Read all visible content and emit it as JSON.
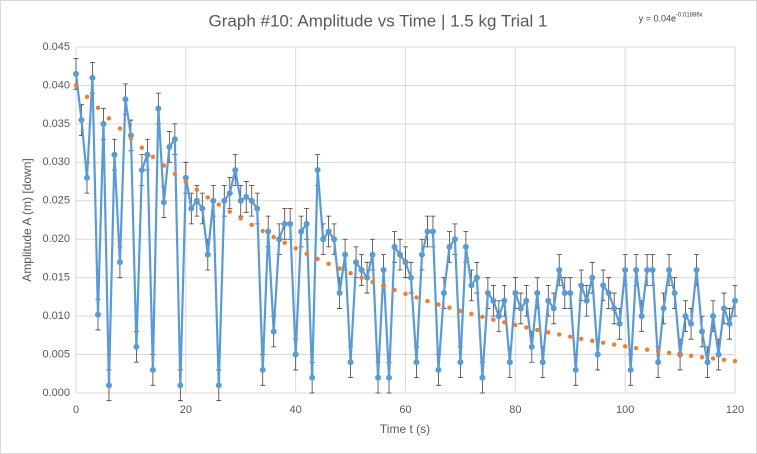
{
  "chart_data": {
    "type": "scatter",
    "title": "Graph #10: Amplitude vs Time | 1.5 kg Trial 1",
    "x_label": "Time t (s)",
    "y_label": "Amplitude A (m)  [down]",
    "equation": {
      "base": "y = 0.04e",
      "exponent": "-0.01886x"
    },
    "grid": true,
    "xlim": [
      0,
      120
    ],
    "xticks": [
      0,
      20,
      40,
      60,
      80,
      100,
      120
    ],
    "ylim": [
      0,
      0.045
    ],
    "yticks": [
      {
        "value": 0,
        "label": "0.000"
      },
      {
        "value": 0.005,
        "label": "0.005"
      },
      {
        "value": 0.01,
        "label": "0.010"
      },
      {
        "value": 0.015,
        "label": "0.015"
      },
      {
        "value": 0.02,
        "label": "0.020"
      },
      {
        "value": 0.025,
        "label": "0.025"
      },
      {
        "value": 0.03,
        "label": "0.030"
      },
      {
        "value": 0.035,
        "label": "0.035"
      },
      {
        "value": 0.04,
        "label": "0.040"
      },
      {
        "value": 0.045,
        "label": "0.045"
      }
    ],
    "x": [
      0,
      1,
      2,
      3,
      4,
      5,
      6,
      7,
      8,
      9,
      10,
      11,
      12,
      13,
      14,
      15,
      16,
      17,
      18,
      19,
      20,
      21,
      22,
      23,
      24,
      25,
      26,
      27,
      28,
      29,
      30,
      31,
      32,
      33,
      34,
      35,
      36,
      37,
      38,
      39,
      40,
      41,
      42,
      43,
      44,
      45,
      46,
      47,
      48,
      49,
      50,
      51,
      52,
      53,
      54,
      55,
      56,
      57,
      58,
      59,
      60,
      61,
      62,
      63,
      64,
      65,
      66,
      67,
      68,
      69,
      70,
      71,
      72,
      73,
      74,
      75,
      76,
      77,
      78,
      79,
      80,
      81,
      82,
      83,
      84,
      85,
      86,
      87,
      88,
      89,
      90,
      91,
      92,
      93,
      94,
      95,
      96,
      97,
      98,
      99,
      100,
      101,
      102,
      103,
      104,
      105,
      106,
      107,
      108,
      109,
      110,
      111,
      112,
      113,
      114,
      115,
      116,
      117,
      118,
      119,
      120
    ],
    "series": [
      {
        "color": "#5b9bd5",
        "error": 0.002,
        "values": [
          0.0415,
          0.0355,
          0.028,
          0.041,
          0.0102,
          0.035,
          0.001,
          0.031,
          0.017,
          0.0382,
          0.0335,
          0.006,
          0.029,
          0.031,
          0.003,
          0.037,
          0.0248,
          0.032,
          0.033,
          0.001,
          0.028,
          0.024,
          0.025,
          0.024,
          0.018,
          0.025,
          0.001,
          0.025,
          0.026,
          0.029,
          0.025,
          0.0255,
          0.025,
          0.024,
          0.003,
          0.021,
          0.008,
          0.02,
          0.022,
          0.022,
          0.005,
          0.021,
          0.022,
          0.002,
          0.029,
          0.02,
          0.021,
          0.02,
          0.013,
          0.018,
          0.004,
          0.017,
          0.016,
          0.015,
          0.018,
          0.002,
          0.016,
          0.002,
          0.019,
          0.018,
          0.017,
          0.015,
          0.004,
          0.018,
          0.021,
          0.021,
          0.003,
          0.013,
          0.019,
          0.02,
          0.004,
          0.019,
          0.014,
          0.015,
          0.002,
          0.013,
          0.012,
          0.01,
          0.012,
          0.004,
          0.013,
          0.011,
          0.012,
          0.006,
          0.013,
          0.004,
          0.012,
          0.011,
          0.016,
          0.013,
          0.013,
          0.003,
          0.014,
          0.012,
          0.015,
          0.005,
          0.014,
          0.013,
          0.011,
          0.009,
          0.016,
          0.003,
          0.016,
          0.01,
          0.016,
          0.016,
          0.004,
          0.011,
          0.016,
          0.013,
          0.005,
          0.01,
          0.009,
          0.016,
          0.008,
          0.004,
          0.01,
          0.005,
          0.011,
          0.009,
          0.012
        ]
      }
    ],
    "trendline": {
      "color": "#ed7d31",
      "x": [
        0,
        2,
        4,
        6,
        8,
        10,
        12,
        14,
        16,
        18,
        20,
        22,
        24,
        26,
        28,
        30,
        32,
        34,
        36,
        38,
        40,
        42,
        44,
        46,
        48,
        50,
        52,
        54,
        56,
        58,
        60,
        62,
        64,
        66,
        68,
        70,
        72,
        74,
        76,
        78,
        80,
        82,
        84,
        86,
        88,
        90,
        92,
        94,
        96,
        98,
        100,
        102,
        104,
        106,
        108,
        110,
        112,
        114,
        116,
        118,
        120
      ],
      "values": [
        0.04,
        0.03852,
        0.03709,
        0.03572,
        0.0344,
        0.03312,
        0.0319,
        0.03072,
        0.02958,
        0.02849,
        0.02743,
        0.02642,
        0.02544,
        0.0245,
        0.02359,
        0.02272,
        0.02188,
        0.02107,
        0.02029,
        0.01953,
        0.01881,
        0.01811,
        0.01744,
        0.0168,
        0.01618,
        0.01558,
        0.015,
        0.01445,
        0.01391,
        0.0134,
        0.0129,
        0.01242,
        0.01196,
        0.01152,
        0.01109,
        0.01068,
        0.01029,
        0.00991,
        0.00954,
        0.00919,
        0.00885,
        0.00852,
        0.0082,
        0.0079,
        0.00761,
        0.00733,
        0.00705,
        0.00679,
        0.00654,
        0.0063,
        0.00607,
        0.00584,
        0.00563,
        0.00542,
        0.00522,
        0.00502,
        0.00484,
        0.00466,
        0.00449,
        0.00432,
        0.00416
      ]
    }
  }
}
